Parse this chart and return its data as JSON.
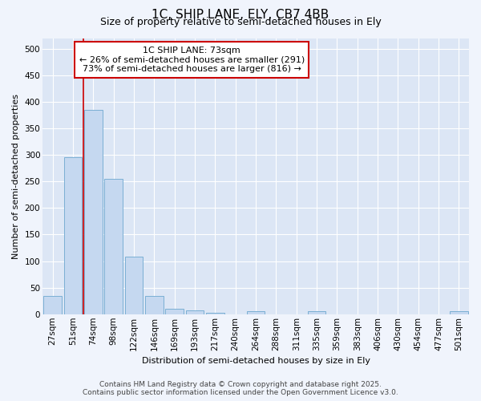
{
  "title": "1C, SHIP LANE, ELY, CB7 4BB",
  "subtitle": "Size of property relative to semi-detached houses in Ely",
  "xlabel": "Distribution of semi-detached houses by size in Ely",
  "ylabel": "Number of semi-detached properties",
  "bar_color": "#c5d8f0",
  "bar_edge_color": "#7bafd4",
  "background_color": "#dce6f5",
  "fig_background_color": "#f0f4fc",
  "categories": [
    "27sqm",
    "51sqm",
    "74sqm",
    "98sqm",
    "122sqm",
    "146sqm",
    "169sqm",
    "193sqm",
    "217sqm",
    "240sqm",
    "264sqm",
    "288sqm",
    "311sqm",
    "335sqm",
    "359sqm",
    "383sqm",
    "406sqm",
    "430sqm",
    "454sqm",
    "477sqm",
    "501sqm"
  ],
  "values": [
    35,
    295,
    385,
    255,
    108,
    35,
    10,
    7,
    3,
    0,
    5,
    0,
    0,
    5,
    0,
    0,
    0,
    0,
    0,
    0,
    5
  ],
  "ylim": [
    0,
    520
  ],
  "yticks": [
    0,
    50,
    100,
    150,
    200,
    250,
    300,
    350,
    400,
    450,
    500
  ],
  "annotation_line1": "1C SHIP LANE: 73sqm",
  "annotation_line2": "← 26% of semi-detached houses are smaller (291)",
  "annotation_line3": "73% of semi-detached houses are larger (816) →",
  "vline_bar_index": 2,
  "footer_line1": "Contains HM Land Registry data © Crown copyright and database right 2025.",
  "footer_line2": "Contains public sector information licensed under the Open Government Licence v3.0.",
  "grid_color": "#ffffff",
  "annotation_box_facecolor": "#ffffff",
  "annotation_box_edgecolor": "#cc0000",
  "vline_color": "#cc0000",
  "title_fontsize": 11,
  "subtitle_fontsize": 9,
  "axis_label_fontsize": 8,
  "tick_fontsize": 7.5,
  "annotation_fontsize": 8,
  "footer_fontsize": 6.5
}
